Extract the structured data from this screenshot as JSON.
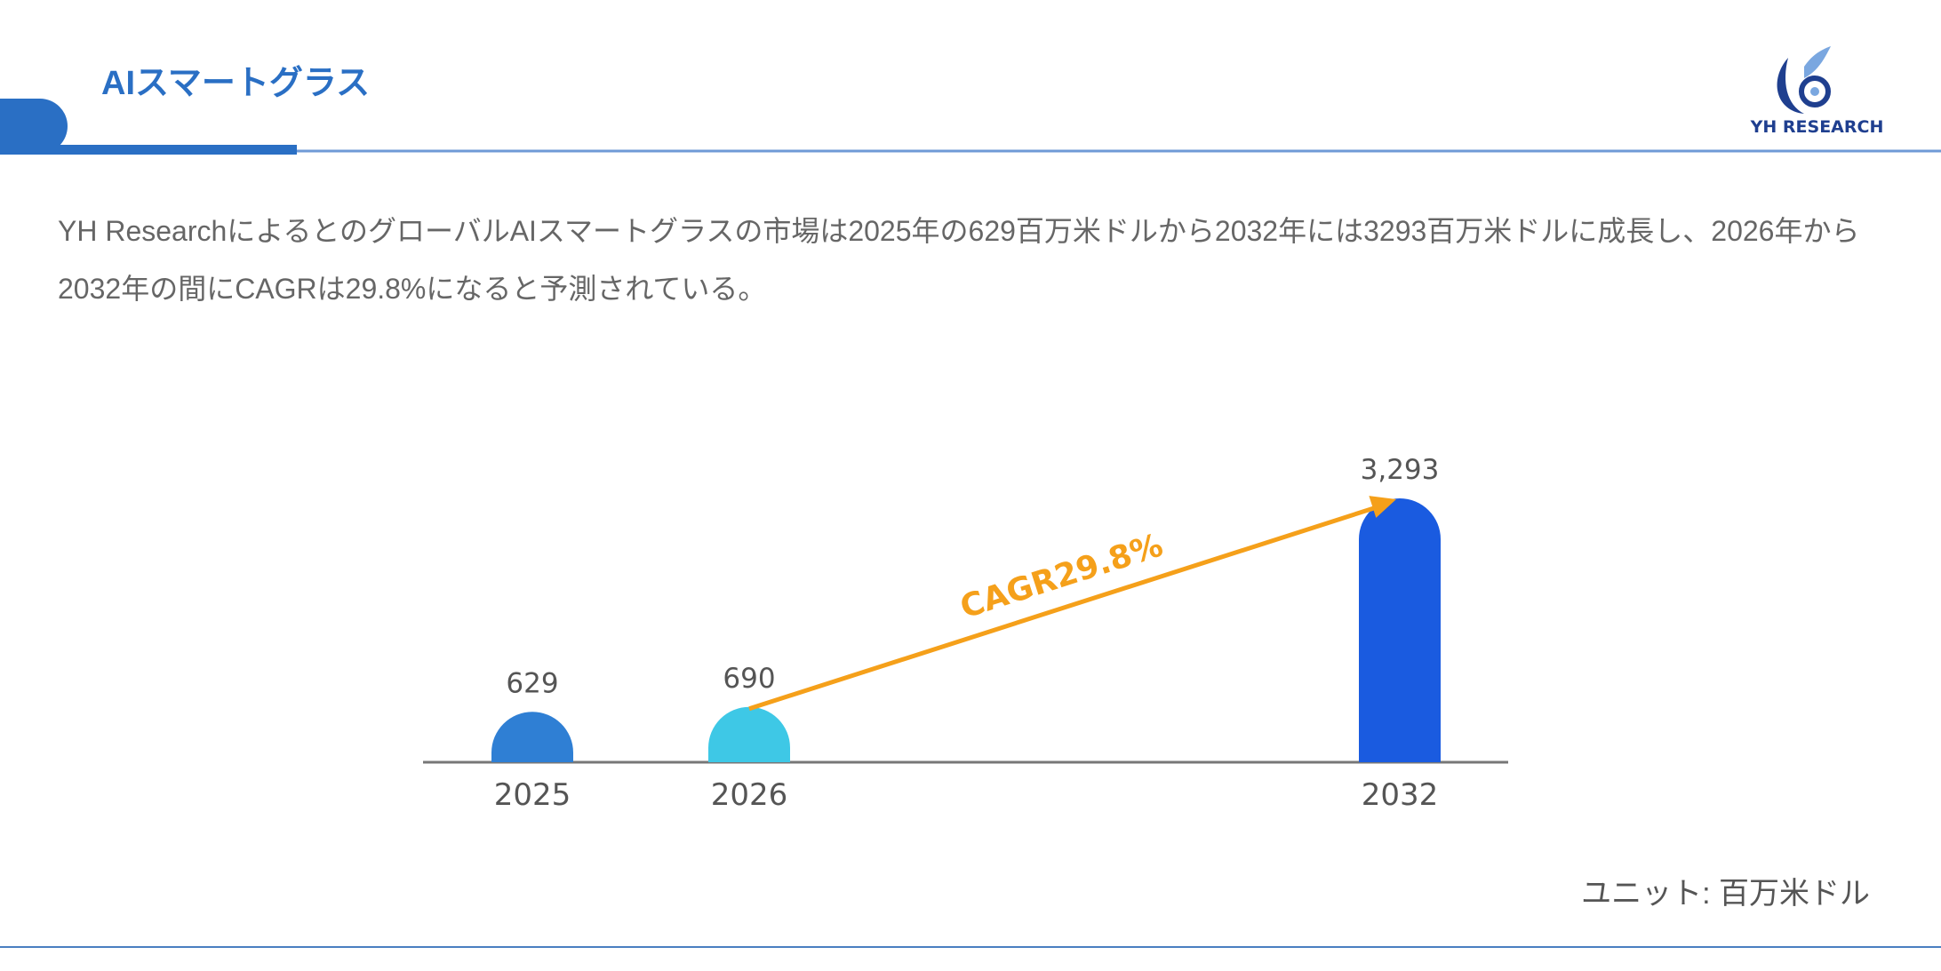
{
  "header": {
    "title": "AIスマートグラス",
    "logo_text": "YH RESEARCH"
  },
  "description": "YH ResearchによるとのグローバルAIスマートグラスの市場は2025年の629百万米ドルから2032年には3293百万米ドルに成長し、2026年から2032年の間にCAGRは29.8%になると予測されている。",
  "chart_data": {
    "type": "bar",
    "categories": [
      "2025",
      "2026",
      "2032"
    ],
    "values": [
      629,
      690,
      3293
    ],
    "value_labels": [
      "629",
      "690",
      "3,293"
    ],
    "colors": [
      "#2f7fd4",
      "#3ec8e6",
      "#1a5be0"
    ],
    "annotation": "CAGR29.8%",
    "annotation_color": "#f5a01a",
    "unit_label": "ユニット: 百万米ドル"
  }
}
